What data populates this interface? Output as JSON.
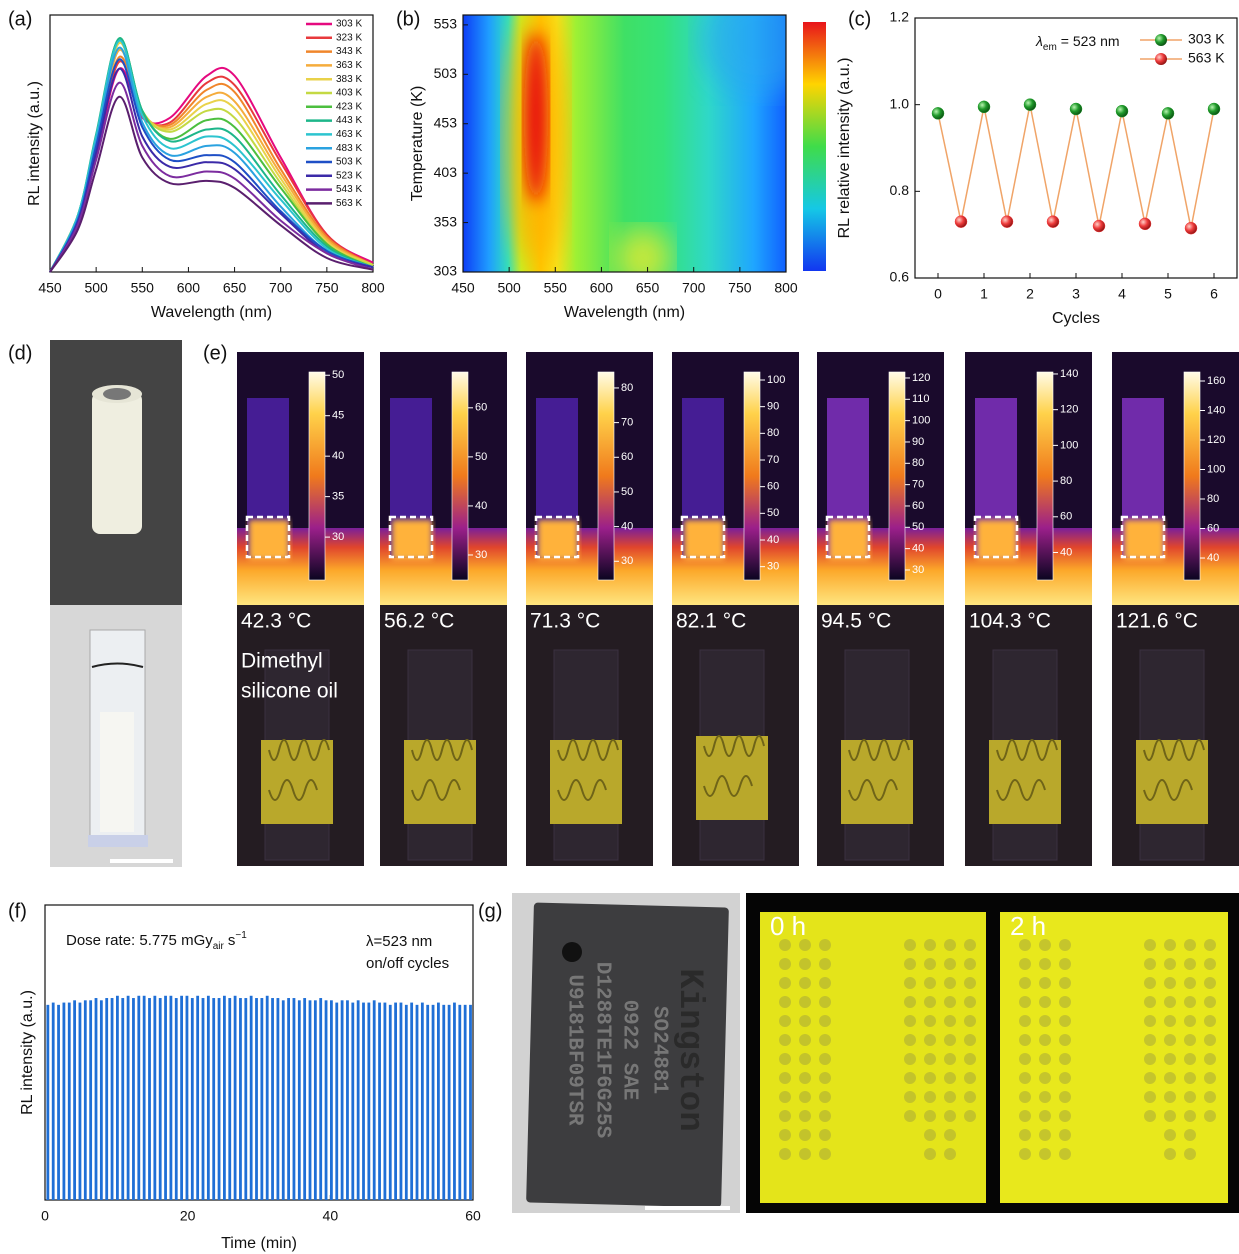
{
  "figure_labels": [
    "(a)",
    "(b)",
    "(c)",
    "(d)",
    "(e)",
    "(f)",
    "(g)"
  ],
  "chart_data": [
    {
      "type": "line",
      "xlabel": "Wavelength (nm)",
      "ylabel": "RL intensity (a.u.)",
      "x": [
        450,
        480,
        500,
        525,
        550,
        580,
        620,
        650,
        700,
        750,
        800
      ],
      "xlim": [
        450,
        800
      ],
      "ylim": [
        0,
        1.1
      ],
      "xticks": [
        450,
        500,
        550,
        600,
        650,
        700,
        750,
        800
      ],
      "legend": "upper right",
      "series": [
        {
          "name": "303 K",
          "color": "#e5097f",
          "values": [
            0,
            0.2,
            0.49,
            0.87,
            0.66,
            0.66,
            0.84,
            0.84,
            0.49,
            0.16,
            0.04
          ]
        },
        {
          "name": "323 K",
          "color": "#e8393c",
          "values": [
            0,
            0.21,
            0.51,
            0.9,
            0.67,
            0.64,
            0.81,
            0.8,
            0.47,
            0.16,
            0.03
          ]
        },
        {
          "name": "343 K",
          "color": "#f0862b",
          "values": [
            0,
            0.22,
            0.53,
            0.92,
            0.68,
            0.63,
            0.78,
            0.77,
            0.44,
            0.15,
            0.03
          ]
        },
        {
          "name": "363 K",
          "color": "#f5ac3c",
          "values": [
            0,
            0.22,
            0.54,
            0.95,
            0.68,
            0.62,
            0.75,
            0.73,
            0.42,
            0.14,
            0.03
          ]
        },
        {
          "name": "383 K",
          "color": "#e9d24a",
          "values": [
            0,
            0.23,
            0.56,
            0.98,
            0.69,
            0.61,
            0.72,
            0.7,
            0.4,
            0.13,
            0.03
          ]
        },
        {
          "name": "403 K",
          "color": "#c4d943",
          "values": [
            0,
            0.24,
            0.57,
            0.99,
            0.69,
            0.6,
            0.69,
            0.66,
            0.38,
            0.12,
            0.03
          ]
        },
        {
          "name": "423 K",
          "color": "#4cbf3f",
          "values": [
            0,
            0.24,
            0.58,
            1.0,
            0.69,
            0.57,
            0.65,
            0.62,
            0.36,
            0.12,
            0.02
          ]
        },
        {
          "name": "443 K",
          "color": "#1db68a",
          "values": [
            0,
            0.24,
            0.59,
            1.0,
            0.69,
            0.56,
            0.61,
            0.58,
            0.33,
            0.11,
            0.02
          ]
        },
        {
          "name": "463 K",
          "color": "#2cc4cf",
          "values": [
            0,
            0.24,
            0.58,
            0.99,
            0.67,
            0.53,
            0.58,
            0.54,
            0.31,
            0.1,
            0.02
          ]
        },
        {
          "name": "483 K",
          "color": "#2aa2e0",
          "values": [
            0,
            0.23,
            0.56,
            0.96,
            0.64,
            0.5,
            0.54,
            0.51,
            0.28,
            0.09,
            0.02
          ]
        },
        {
          "name": "503 K",
          "color": "#1e4fc6",
          "values": [
            0,
            0.22,
            0.54,
            0.91,
            0.62,
            0.48,
            0.5,
            0.47,
            0.26,
            0.09,
            0.02
          ]
        },
        {
          "name": "523 K",
          "color": "#3b2aa8",
          "values": [
            0,
            0.21,
            0.51,
            0.87,
            0.58,
            0.45,
            0.47,
            0.44,
            0.25,
            0.08,
            0.02
          ]
        },
        {
          "name": "543 K",
          "color": "#7c2c9f",
          "values": [
            0,
            0.2,
            0.48,
            0.81,
            0.54,
            0.41,
            0.43,
            0.4,
            0.22,
            0.08,
            0.01
          ]
        },
        {
          "name": "563 K",
          "color": "#5a1f6e",
          "values": [
            0,
            0.18,
            0.44,
            0.75,
            0.49,
            0.38,
            0.39,
            0.36,
            0.2,
            0.06,
            0.01
          ]
        }
      ]
    },
    {
      "type": "heatmap",
      "xlabel": "Wavelength (nm)",
      "ylabel": "Temperature (K)",
      "xlim": [
        450,
        800
      ],
      "ylim": [
        303,
        563
      ],
      "xticks": [
        450,
        500,
        550,
        600,
        650,
        700,
        750,
        800
      ],
      "yticks": [
        303,
        353,
        403,
        453,
        503,
        553
      ]
    },
    {
      "type": "scatter-line",
      "xlabel": "Cycles",
      "ylabel": "RL relative intensity (a.u.)",
      "annotation": {
        "symbol": "λ",
        "subscript": "em",
        "text": "= 523 nm"
      },
      "xlim": [
        -0.5,
        6.5
      ],
      "ylim": [
        0.6,
        1.2
      ],
      "xticks": [
        0,
        1,
        2,
        3,
        4,
        5,
        6
      ],
      "yticks": [
        0.6,
        0.8,
        {
          "value": 1,
          "label": "1.0"
        },
        1.2
      ],
      "line_color": "#f0a468",
      "legend": "upper right",
      "series": [
        {
          "name": "303 K",
          "color": "#1f9a2a",
          "x": [
            0,
            1,
            2,
            3,
            4,
            5,
            6
          ],
          "values": [
            0.98,
            0.995,
            1.0,
            0.99,
            0.985,
            0.98,
            0.99
          ]
        },
        {
          "name": "563 K",
          "color": "#ee3b3b",
          "x": [
            0.5,
            1.5,
            2.5,
            3.5,
            4.5,
            5.5
          ],
          "values": [
            0.73,
            0.73,
            0.73,
            0.72,
            0.725,
            0.715
          ]
        }
      ]
    },
    {
      "type": "pulse",
      "xlabel": "Time (min)",
      "ylabel": "RL intensity (a.u.)",
      "color": "#1f6fd6",
      "annotation": {
        "text": "Dose rate: 5.775 mGy",
        "subscript": "air",
        "unit": "s",
        "superscript": "−1"
      },
      "annotation_right": [
        "λ=523 nm",
        "on/off cycles"
      ],
      "xlim": [
        0,
        60
      ],
      "ylim": [
        0,
        1.3
      ],
      "xticks": [
        0,
        20,
        40,
        60
      ],
      "x": [
        0.4,
        1.15,
        1.9,
        2.65,
        3.4,
        4.15,
        4.9,
        5.65,
        6.4,
        7.15,
        7.9,
        8.65,
        9.4,
        10.15,
        10.9,
        11.65,
        12.4,
        13.15,
        13.9,
        14.65,
        15.4,
        16.15,
        16.9,
        17.65,
        18.4,
        19.15,
        19.9,
        20.65,
        21.4,
        22.15,
        22.9,
        23.65,
        24.4,
        25.15,
        25.9,
        26.65,
        27.4,
        28.15,
        28.9,
        29.65,
        30.4,
        31.15,
        31.9,
        32.65,
        33.4,
        34.15,
        34.9,
        35.65,
        36.4,
        37.15,
        37.9,
        38.65,
        39.4,
        40.15,
        40.9,
        41.65,
        42.4,
        43.15,
        43.9,
        44.65,
        45.4,
        46.15,
        46.9,
        47.65,
        48.4,
        49.15,
        49.9,
        50.65,
        51.4,
        52.15,
        52.9,
        53.65,
        54.4,
        55.15,
        55.9,
        56.65,
        57.4,
        58.15,
        58.9,
        59.65
      ],
      "values": [
        0.86,
        0.87,
        0.86,
        0.87,
        0.87,
        0.88,
        0.87,
        0.88,
        0.88,
        0.89,
        0.88,
        0.89,
        0.89,
        0.9,
        0.89,
        0.9,
        0.89,
        0.9,
        0.9,
        0.89,
        0.9,
        0.89,
        0.9,
        0.9,
        0.89,
        0.9,
        0.9,
        0.89,
        0.9,
        0.89,
        0.9,
        0.89,
        0.89,
        0.9,
        0.89,
        0.9,
        0.89,
        0.89,
        0.9,
        0.89,
        0.89,
        0.9,
        0.89,
        0.89,
        0.88,
        0.89,
        0.89,
        0.88,
        0.89,
        0.88,
        0.88,
        0.89,
        0.88,
        0.88,
        0.87,
        0.88,
        0.88,
        0.87,
        0.88,
        0.87,
        0.87,
        0.88,
        0.87,
        0.87,
        0.86,
        0.87,
        0.87,
        0.86,
        0.87,
        0.86,
        0.87,
        0.86,
        0.86,
        0.87,
        0.86,
        0.86,
        0.87,
        0.86,
        0.86,
        0.86
      ]
    }
  ],
  "thermal_images": {
    "annotation": [
      "Dimethyl",
      "silicone oil"
    ],
    "panels": [
      {
        "temperature": "42.3 °C",
        "colorbar_range": [
          24.7,
          50.4
        ],
        "colorbar_ticks": [
          30,
          35,
          40,
          45,
          50
        ]
      },
      {
        "temperature": "56.2 °C",
        "colorbar_range": [
          24.9,
          67.3
        ],
        "colorbar_ticks": [
          30,
          40,
          50,
          60
        ]
      },
      {
        "temperature": "71.3 °C",
        "colorbar_range": [
          24.6,
          84.6
        ],
        "colorbar_ticks": [
          30,
          40,
          50,
          60,
          70,
          80
        ]
      },
      {
        "temperature": "82.1 °C",
        "colorbar_range": [
          25,
          103
        ],
        "colorbar_ticks": [
          30,
          40,
          50,
          60,
          70,
          80,
          90,
          100
        ]
      },
      {
        "temperature": "94.5 °C",
        "colorbar_range": [
          25.3,
          122.8
        ],
        "colorbar_ticks": [
          30,
          40,
          50,
          60,
          70,
          80,
          90,
          100,
          110,
          120
        ]
      },
      {
        "temperature": "104.3 °C",
        "colorbar_range": [
          24.6,
          141.1
        ],
        "colorbar_ticks": [
          40,
          60,
          80,
          100,
          120,
          140
        ]
      },
      {
        "temperature": "121.6 °C",
        "colorbar_range": [
          25.1,
          166.1
        ],
        "colorbar_ticks": [
          40,
          60,
          80,
          100,
          120,
          140,
          160
        ]
      }
    ]
  },
  "chip_photo": {
    "lines": [
      "Kingston",
      "SO24881",
      "0922 SAE",
      "D1288TE1F6G25S",
      "U9181BF09TSR"
    ]
  },
  "aging_photos": {
    "labels": [
      "0 h",
      "2 h"
    ]
  }
}
